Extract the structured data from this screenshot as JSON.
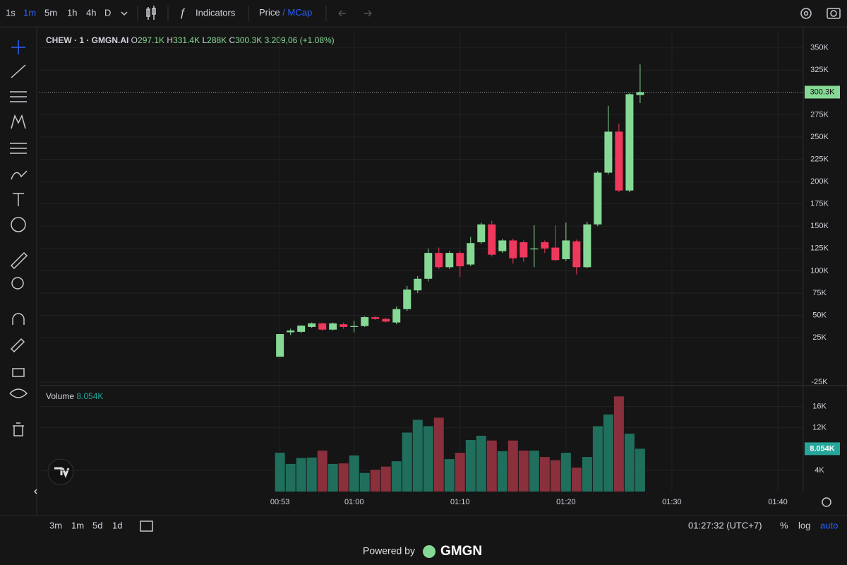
{
  "toolbar": {
    "intervals": [
      "1s",
      "1m",
      "5m",
      "1h",
      "4h",
      "D"
    ],
    "indicators": "Indicators",
    "price": "Price",
    "separator": "/",
    "mcap": "MCap"
  },
  "legend": {
    "symbol": "CHEW · 1 · GMGN.AI",
    "o_label": "O",
    "o": "297.1K",
    "h_label": "H",
    "h": "331.4K",
    "l_label": "L",
    "l": "288K",
    "c_label": "C",
    "c": "300.3K",
    "change": "3.209,06 (+1.08%)"
  },
  "chart_data": [
    {
      "type": "candlestick",
      "x": [
        53,
        54,
        55,
        56,
        57,
        58,
        59,
        60,
        61,
        62,
        63,
        64,
        65,
        66,
        67,
        68,
        69,
        70,
        71,
        72,
        73,
        74,
        75,
        76,
        77,
        78,
        79,
        80,
        81,
        82,
        83,
        84,
        85,
        86,
        87
      ],
      "open": [
        3.6,
        31,
        31.5,
        37,
        41,
        34,
        40,
        37,
        38,
        48,
        46,
        42,
        57,
        78,
        91,
        120,
        104,
        120,
        107,
        132,
        152,
        122,
        134,
        132,
        124,
        132,
        126,
        113,
        133,
        104,
        152,
        210,
        256,
        190,
        297.1
      ],
      "high": [
        29,
        35,
        39,
        42,
        42,
        42,
        42,
        44,
        49,
        49,
        47,
        60,
        83,
        94,
        125,
        126,
        122,
        122,
        138,
        154,
        156,
        136,
        136,
        134,
        151,
        134,
        151,
        154,
        135,
        155,
        212,
        285,
        265,
        299,
        331.4
      ],
      "low": [
        3.6,
        28,
        30,
        36,
        33,
        33,
        35,
        31,
        37,
        45,
        42,
        40,
        55,
        75,
        88,
        102,
        102,
        93,
        105,
        130,
        116,
        120,
        108,
        110,
        104,
        120,
        111,
        111,
        96,
        103,
        150,
        208,
        188,
        188,
        288
      ],
      "close": [
        29,
        33,
        38.5,
        41,
        34,
        41,
        37,
        38,
        48,
        46,
        43,
        57,
        79,
        91,
        120,
        104,
        120,
        105,
        131,
        152,
        118,
        134,
        114,
        115,
        125,
        125,
        112,
        134,
        104,
        152,
        210,
        256,
        190,
        298,
        300.3
      ],
      "up_color": "#86d995",
      "down_color": "#f0385c",
      "last_price_label": "300.3K",
      "xlim": [
        30.3,
        102.4
      ],
      "xticks": [
        {
          "value": 53,
          "label": "00:53"
        },
        {
          "value": 60,
          "label": "01:00"
        },
        {
          "value": 70,
          "label": "01:10"
        },
        {
          "value": 80,
          "label": "01:20"
        },
        {
          "value": 90,
          "label": "01:30"
        },
        {
          "value": 100,
          "label": "01:40"
        }
      ],
      "ylim": [
        -28,
        368
      ],
      "yticks": [
        {
          "value": 350,
          "label": "350K"
        },
        {
          "value": 325,
          "label": "325K"
        },
        {
          "value": 275,
          "label": "275K"
        },
        {
          "value": 250,
          "label": "250K"
        },
        {
          "value": 225,
          "label": "225K"
        },
        {
          "value": 200,
          "label": "200K"
        },
        {
          "value": 175,
          "label": "175K"
        },
        {
          "value": 150,
          "label": "150K"
        },
        {
          "value": 125,
          "label": "125K"
        },
        {
          "value": 100,
          "label": "100K"
        },
        {
          "value": 75,
          "label": "75K"
        },
        {
          "value": 50,
          "label": "50K"
        },
        {
          "value": 25,
          "label": "25K"
        },
        {
          "value": -25,
          "label": "-25K"
        }
      ],
      "grid": true
    },
    {
      "type": "bar",
      "name": "Volume",
      "legend_value": "8.054K",
      "x": [
        53,
        54,
        55,
        56,
        57,
        58,
        59,
        60,
        61,
        62,
        63,
        64,
        65,
        66,
        67,
        68,
        69,
        70,
        71,
        72,
        73,
        74,
        75,
        76,
        77,
        78,
        79,
        80,
        81,
        82,
        83,
        84,
        85,
        86,
        87
      ],
      "values": [
        7.3,
        5.2,
        6.3,
        6.4,
        7.7,
        5.2,
        5.3,
        6.8,
        3.5,
        4.1,
        4.7,
        5.7,
        11.1,
        13.5,
        12.3,
        13.9,
        6.1,
        7.3,
        9.7,
        10.5,
        9.6,
        7.6,
        9.6,
        7.7,
        7.7,
        6.5,
        5.9,
        7.3,
        4.5,
        6.5,
        12.3,
        14.5,
        17.9,
        10.9,
        8.054
      ],
      "up_color": "#1f6f5c",
      "down_color": "#8a2f3c",
      "last_value_label": "8.054K",
      "xlim": [
        30.3,
        102.4
      ],
      "ylim": [
        0,
        19.4
      ],
      "yticks": [
        {
          "value": 16,
          "label": "16K"
        },
        {
          "value": 12,
          "label": "12K"
        },
        {
          "value": 4,
          "label": "4K"
        }
      ],
      "grid": true
    }
  ],
  "bottom_bar": {
    "ranges": [
      "3m",
      "1m",
      "5d",
      "1d"
    ],
    "time": "01:27:32 (UTC+7)",
    "percent": "%",
    "log": "log",
    "auto": "auto"
  },
  "footer": {
    "powered_by": "Powered by",
    "brand": "GMGN"
  }
}
